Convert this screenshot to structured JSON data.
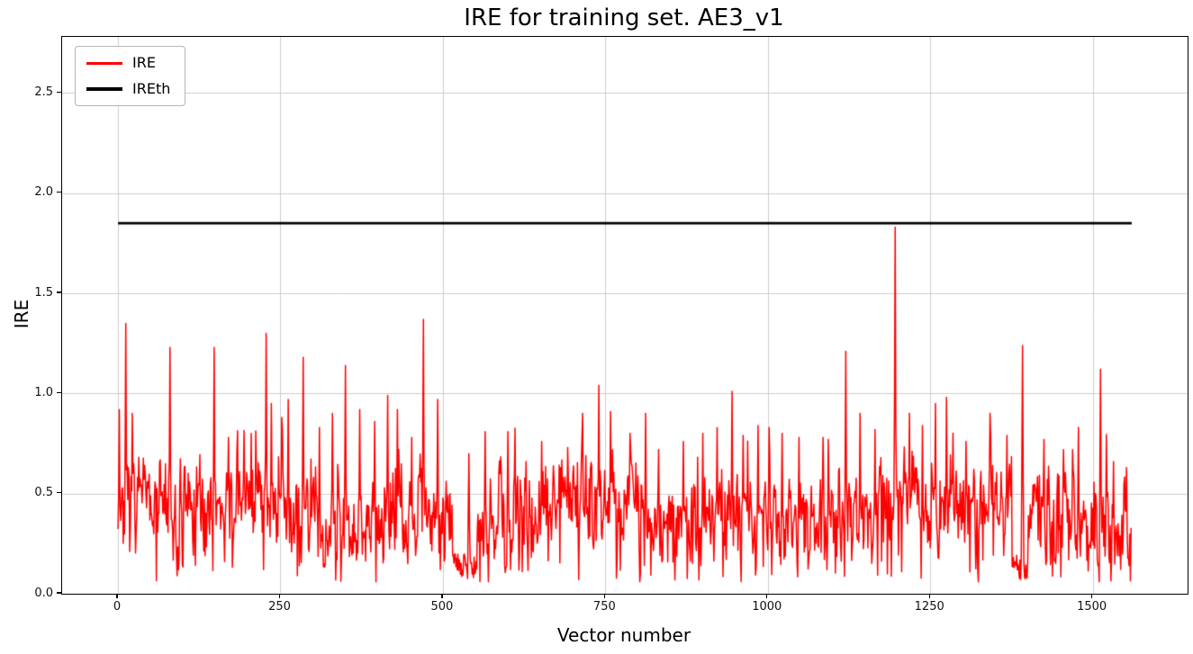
{
  "chart_data": {
    "type": "line",
    "title": "IRE for training set. AE3_v1",
    "xlabel": "Vector number",
    "ylabel": "IRE",
    "xlim": [
      -86,
      1646
    ],
    "ylim": [
      0,
      2.78
    ],
    "xticks": [
      0,
      250,
      500,
      750,
      1000,
      1250,
      1500
    ],
    "yticks": [
      0.0,
      0.5,
      1.0,
      1.5,
      2.0,
      2.5
    ],
    "grid": true,
    "legend_position": "upper left",
    "colors": {
      "background": "#ffffff",
      "grid": "#cccccc",
      "spine": "#000000",
      "tick_label": "#111111",
      "ire_line": "#ff0000",
      "threshold_line": "#000000"
    },
    "series": [
      {
        "name": "IRE",
        "color": "#ff0000",
        "type": "noisy-line",
        "line_width": 1.5,
        "x_start": 0,
        "n_points": 1560,
        "seed": 7,
        "baseline_mean": 0.4,
        "baseline_spread": 0.16,
        "baseline_min": 0.06,
        "baseline_max": 0.92,
        "bump_prob": 0.06,
        "bump_max": 0.3,
        "dip_prob": 0.05,
        "low_regions": [
          [
            515,
            552
          ],
          [
            1376,
            1400
          ]
        ],
        "spikes": [
          [
            2,
            0.92
          ],
          [
            12,
            1.35
          ],
          [
            22,
            0.9
          ],
          [
            80,
            1.23
          ],
          [
            148,
            1.23
          ],
          [
            170,
            0.78
          ],
          [
            205,
            0.8
          ],
          [
            228,
            1.3
          ],
          [
            236,
            0.95
          ],
          [
            252,
            0.88
          ],
          [
            262,
            0.97
          ],
          [
            285,
            1.18
          ],
          [
            310,
            0.83
          ],
          [
            330,
            0.9
          ],
          [
            350,
            1.14
          ],
          [
            372,
            0.92
          ],
          [
            395,
            0.86
          ],
          [
            415,
            0.99
          ],
          [
            430,
            0.92
          ],
          [
            452,
            0.78
          ],
          [
            470,
            1.37
          ],
          [
            492,
            0.97
          ],
          [
            540,
            0.7
          ],
          [
            565,
            0.81
          ],
          [
            600,
            0.81
          ],
          [
            628,
            0.66
          ],
          [
            652,
            0.76
          ],
          [
            692,
            0.73
          ],
          [
            715,
            0.9
          ],
          [
            740,
            1.04
          ],
          [
            758,
            0.91
          ],
          [
            788,
            0.8
          ],
          [
            812,
            0.9
          ],
          [
            832,
            0.72
          ],
          [
            870,
            0.76
          ],
          [
            900,
            0.8
          ],
          [
            922,
            0.83
          ],
          [
            945,
            1.01
          ],
          [
            962,
            0.79
          ],
          [
            985,
            0.84
          ],
          [
            1002,
            0.83
          ],
          [
            1022,
            0.8
          ],
          [
            1048,
            0.78
          ],
          [
            1085,
            0.78
          ],
          [
            1120,
            1.21
          ],
          [
            1142,
            0.9
          ],
          [
            1165,
            0.82
          ],
          [
            1196,
            1.83
          ],
          [
            1218,
            0.9
          ],
          [
            1238,
            0.84
          ],
          [
            1258,
            0.95
          ],
          [
            1275,
            0.98
          ],
          [
            1305,
            0.76
          ],
          [
            1342,
            0.9
          ],
          [
            1368,
            0.79
          ],
          [
            1392,
            1.24
          ],
          [
            1425,
            0.77
          ],
          [
            1455,
            0.72
          ],
          [
            1478,
            0.83
          ],
          [
            1512,
            1.12
          ],
          [
            1532,
            0.66
          ],
          [
            1552,
            0.63
          ]
        ]
      },
      {
        "name": "IREth",
        "color": "#000000",
        "type": "hline",
        "line_width": 2.8,
        "value": 1.85,
        "x_start": 0,
        "x_end": 1560
      }
    ]
  }
}
